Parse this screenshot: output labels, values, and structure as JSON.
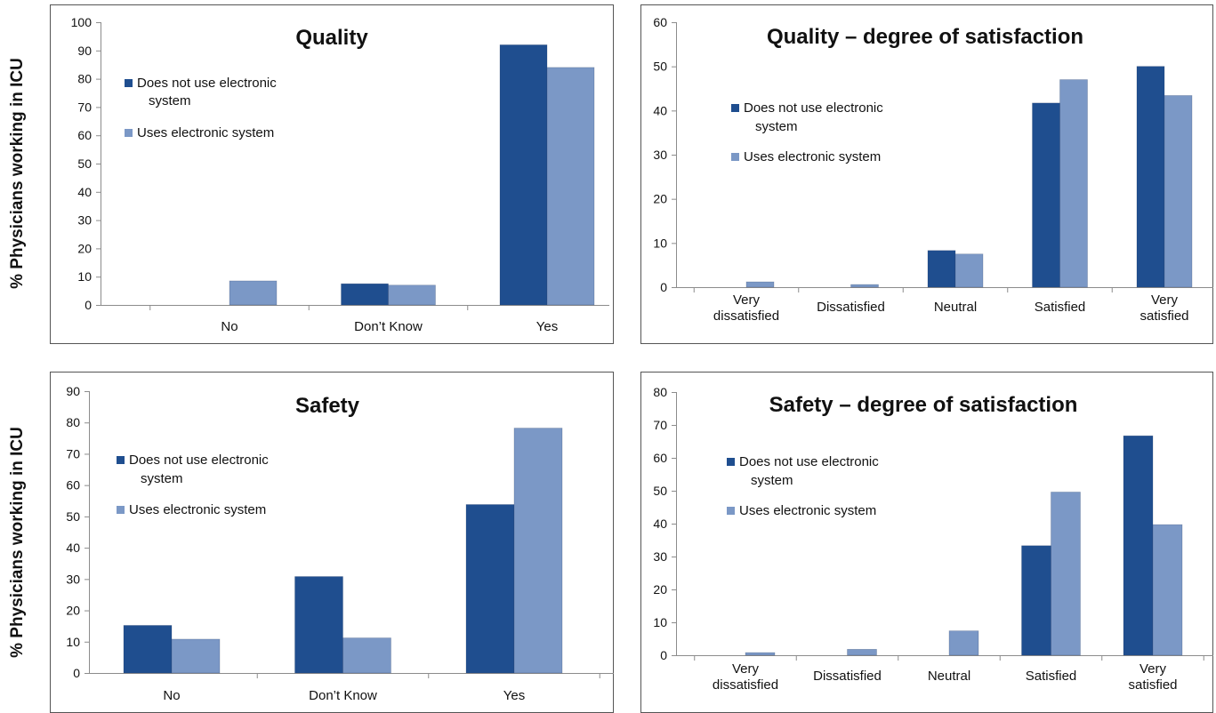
{
  "y_axis_label": "% Physicians working in ICU",
  "colors": {
    "series_dark": "#1f4e8f",
    "series_light": "#7b98c6",
    "frame": "#555555",
    "grid": "#d9d9d9",
    "text": "#111111"
  },
  "chart_data": [
    {
      "id": "quality",
      "type": "bar",
      "title": "Quality",
      "xlabel": "",
      "ylabel": "% Physicians working in ICU",
      "categories": [
        "No",
        "Don’t Know",
        "Yes"
      ],
      "series": [
        {
          "name": "Does not use electronic system",
          "values": [
            0,
            7.5,
            92
          ]
        },
        {
          "name": "Uses electronic system",
          "values": [
            8.5,
            7,
            84
          ]
        }
      ],
      "ylim": [
        0,
        100
      ],
      "yticks": [
        0,
        10,
        20,
        30,
        40,
        50,
        60,
        70,
        80,
        90,
        100
      ],
      "grid": false,
      "legend_position": "top-left"
    },
    {
      "id": "quality-satisfaction",
      "type": "bar",
      "title": "Quality – degree of satisfaction",
      "xlabel": "",
      "ylabel": "",
      "categories": [
        "Very dissatisfied",
        "Dissatisfied",
        "Neutral",
        "Satisfied",
        "Very satisfied"
      ],
      "series": [
        {
          "name": "Does not use electronic system",
          "values": [
            0,
            0,
            8.3,
            41.7,
            50
          ]
        },
        {
          "name": "Uses electronic system",
          "values": [
            1.2,
            0.6,
            7.5,
            47,
            43.4
          ]
        }
      ],
      "ylim": [
        0,
        60
      ],
      "yticks": [
        0,
        10,
        20,
        30,
        40,
        50,
        60
      ],
      "grid": false,
      "legend_position": "top-left"
    },
    {
      "id": "safety",
      "type": "bar",
      "title": "Safety",
      "xlabel": "",
      "ylabel": "% Physicians working in ICU",
      "categories": [
        "No",
        "Don’t Know",
        "Yes"
      ],
      "series": [
        {
          "name": "Does not use electronic system",
          "values": [
            15.2,
            30.8,
            53.8
          ]
        },
        {
          "name": "Uses electronic system",
          "values": [
            10.8,
            11.2,
            78.2
          ]
        }
      ],
      "ylim": [
        0,
        90
      ],
      "yticks": [
        0,
        10,
        20,
        30,
        40,
        50,
        60,
        70,
        80,
        90
      ],
      "grid": false,
      "legend_position": "top-left"
    },
    {
      "id": "safety-satisfaction",
      "type": "bar",
      "title": "Safety – degree of satisfaction",
      "xlabel": "",
      "ylabel": "",
      "categories": [
        "Very dissatisfied",
        "Dissatisfied",
        "Neutral",
        "Satisfied",
        "Very satisfied"
      ],
      "series": [
        {
          "name": "Does not use electronic system",
          "values": [
            0,
            0,
            0,
            33.3,
            66.7
          ]
        },
        {
          "name": "Uses electronic system",
          "values": [
            0.8,
            1.8,
            7.4,
            49.6,
            39.7
          ]
        }
      ],
      "ylim": [
        0,
        80
      ],
      "yticks": [
        0,
        10,
        20,
        30,
        40,
        50,
        60,
        70,
        80
      ],
      "grid": false,
      "legend_position": "top-left"
    }
  ]
}
